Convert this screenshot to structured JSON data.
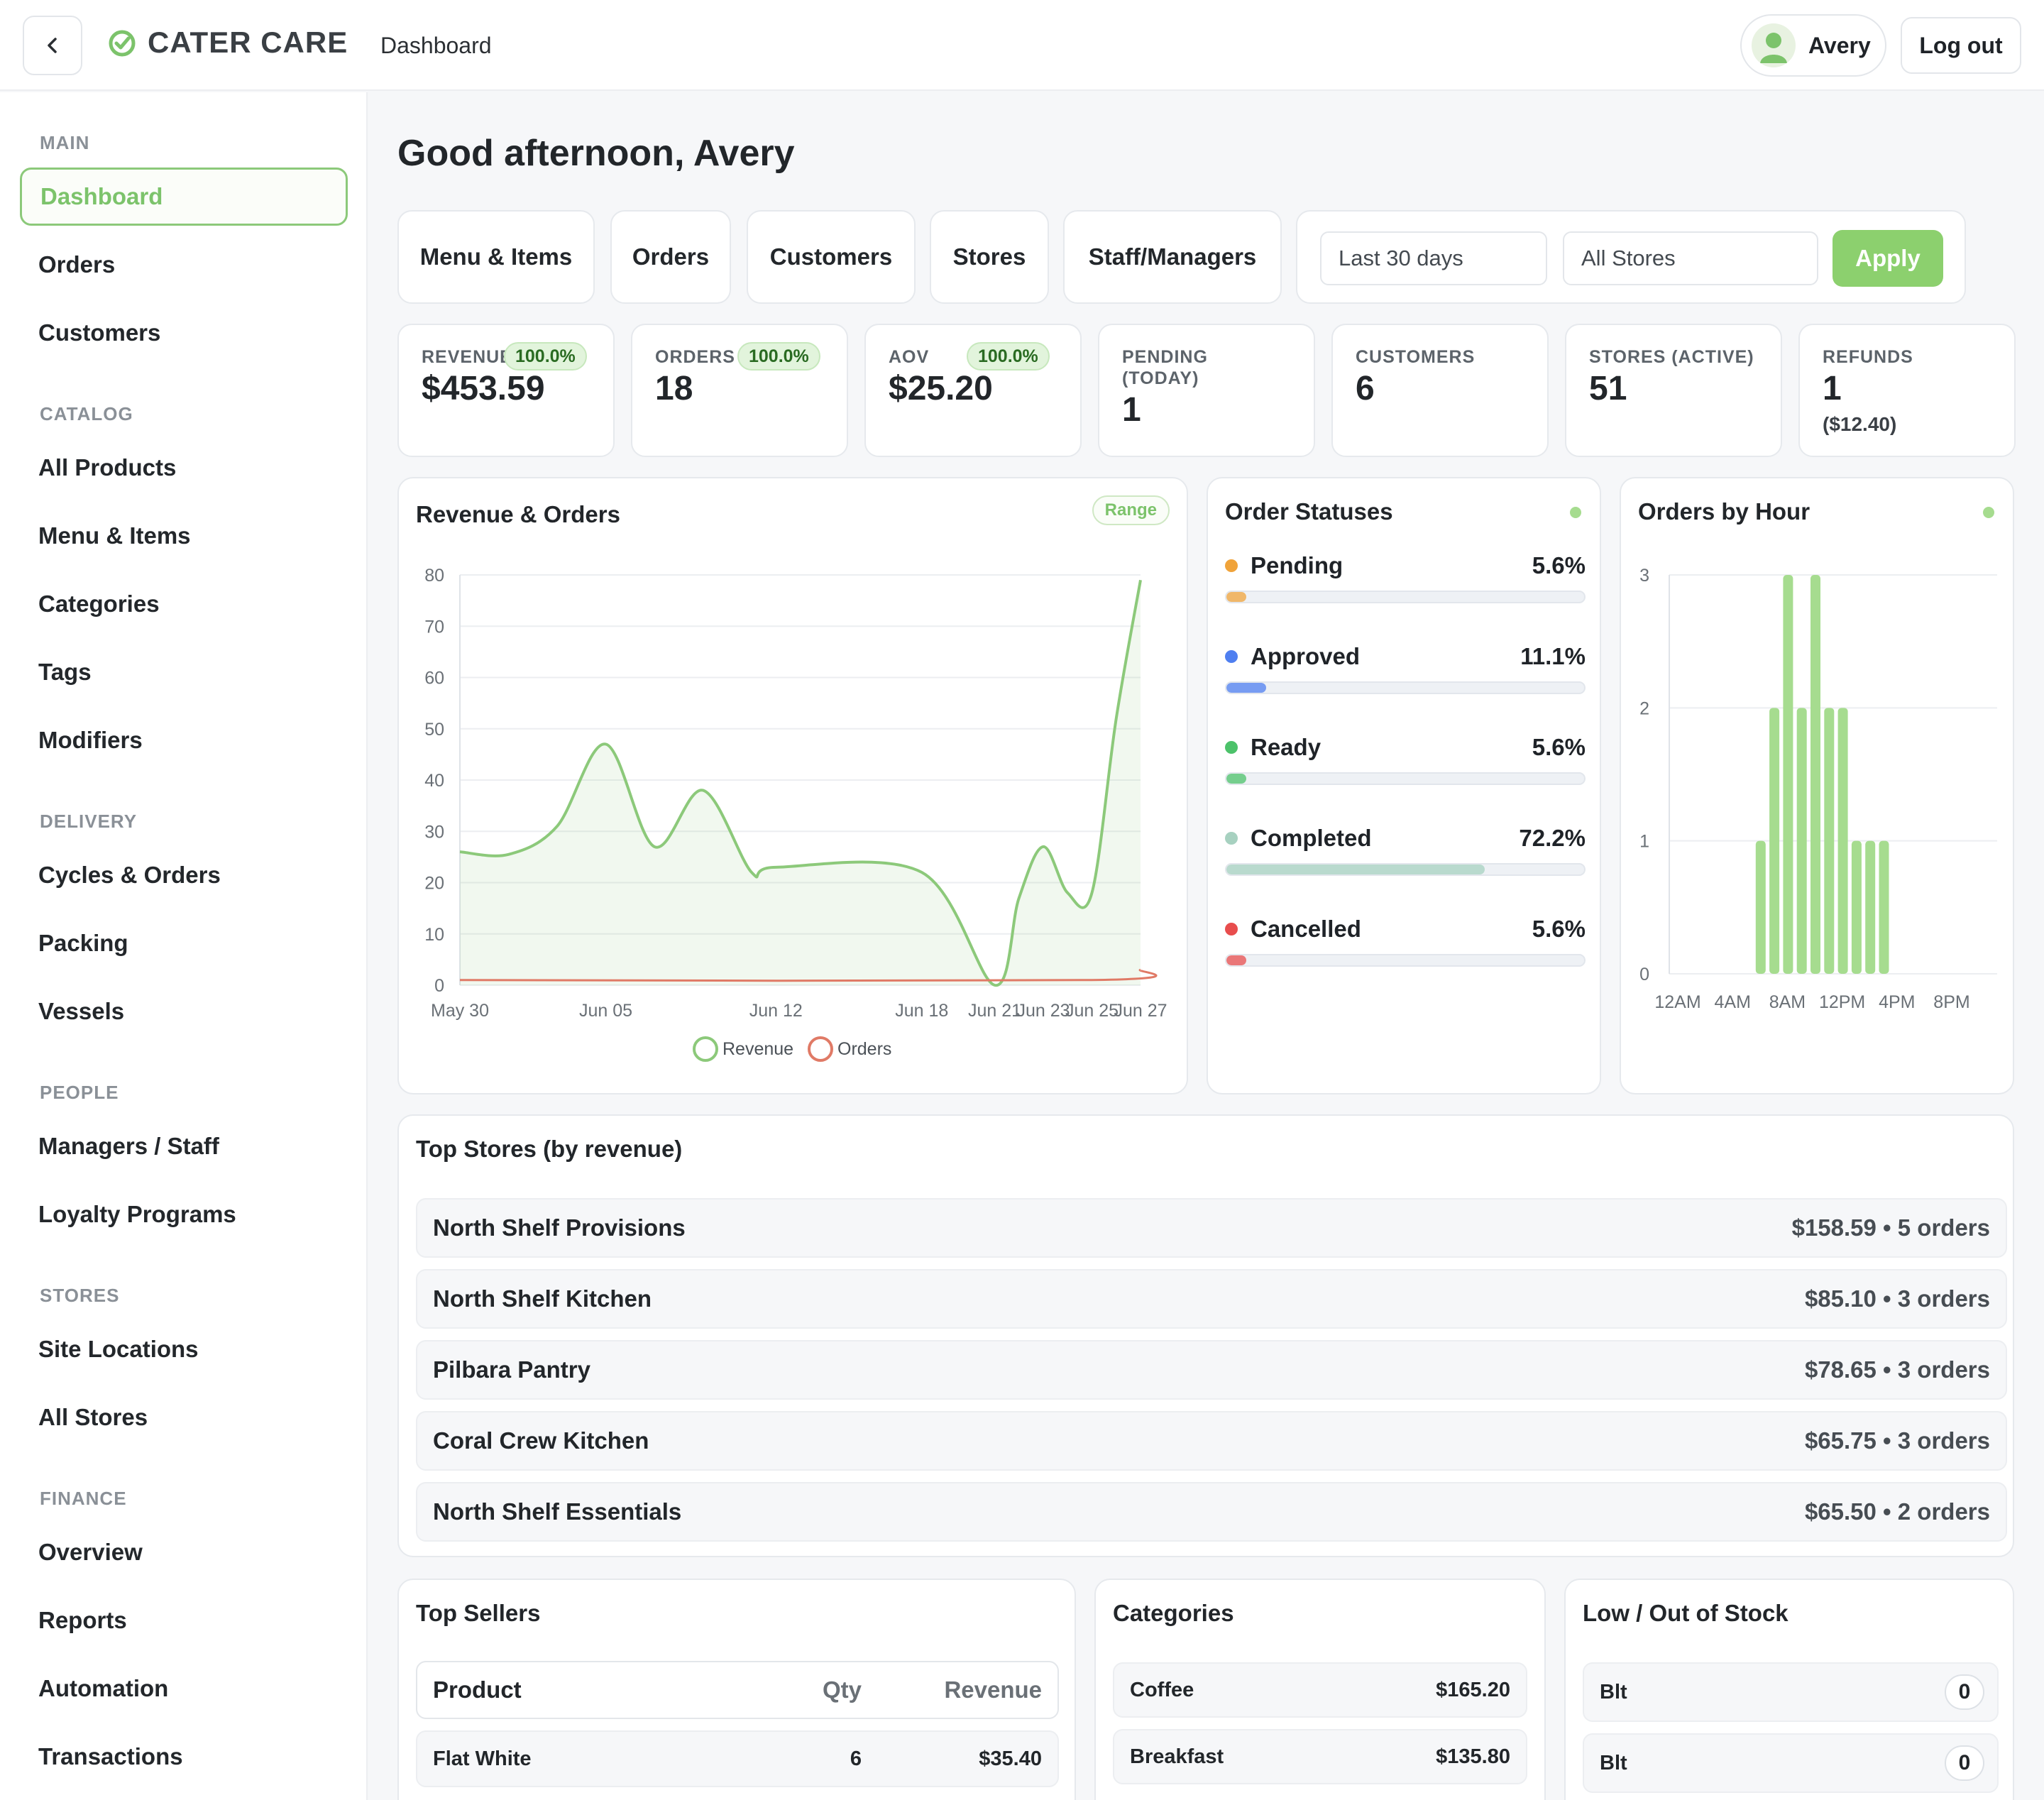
{
  "header": {
    "logo_text": "CATER CARE",
    "breadcrumb": "Dashboard",
    "user_name": "Avery",
    "logout_label": "Log out"
  },
  "sidebar": {
    "sections": [
      {
        "title": "MAIN",
        "items": [
          "Dashboard",
          "Orders",
          "Customers"
        ]
      },
      {
        "title": "CATALOG",
        "items": [
          "All Products",
          "Menu & Items",
          "Categories",
          "Tags",
          "Modifiers"
        ]
      },
      {
        "title": "DELIVERY",
        "items": [
          "Cycles & Orders",
          "Packing",
          "Vessels"
        ]
      },
      {
        "title": "PEOPLE",
        "items": [
          "Managers / Staff",
          "Loyalty Programs"
        ]
      },
      {
        "title": "STORES",
        "items": [
          "Site Locations",
          "All Stores"
        ]
      },
      {
        "title": "FINANCE",
        "items": [
          "Overview",
          "Reports",
          "Automation",
          "Transactions"
        ]
      }
    ]
  },
  "main": {
    "greeting": "Good afternoon, Avery",
    "quick_links": [
      "Menu & Items",
      "Orders",
      "Customers",
      "Stores",
      "Staff/Managers"
    ],
    "filters": {
      "period": "Last 30 days",
      "store": "All Stores",
      "apply_label": "Apply"
    },
    "kpis": [
      {
        "label": "REVENUE",
        "value": "$453.59",
        "badge": "100.0%"
      },
      {
        "label": "ORDERS",
        "value": "18",
        "badge": "100.0%"
      },
      {
        "label": "AOV",
        "value": "$25.20",
        "badge": "100.0%"
      },
      {
        "label": "PENDING (TODAY)",
        "value": "1"
      },
      {
        "label": "CUSTOMERS",
        "value": "6"
      },
      {
        "label": "STORES (ACTIVE)",
        "value": "51"
      },
      {
        "label": "REFUNDS",
        "value": "1",
        "sub": "($12.40)"
      }
    ],
    "revenue_card": {
      "title": "Revenue & Orders",
      "range_label": "Range"
    },
    "status_card": {
      "title": "Order Statuses",
      "statuses": [
        {
          "name": "Pending",
          "pct": "5.6%",
          "value": 5.6,
          "color": "#f0a33a"
        },
        {
          "name": "Approved",
          "pct": "11.1%",
          "value": 11.1,
          "color": "#4f7ff0"
        },
        {
          "name": "Ready",
          "pct": "5.6%",
          "value": 5.6,
          "color": "#4cc26a"
        },
        {
          "name": "Completed",
          "pct": "72.2%",
          "value": 72.2,
          "color": "#a7d1c0"
        },
        {
          "name": "Cancelled",
          "pct": "5.6%",
          "value": 5.6,
          "color": "#e84d4d"
        }
      ]
    },
    "hour_card": {
      "title": "Orders by Hour"
    },
    "top_stores": {
      "title": "Top Stores (by revenue)",
      "rows": [
        {
          "name": "North Shelf Provisions",
          "meta": "$158.59 • 5 orders"
        },
        {
          "name": "North Shelf Kitchen",
          "meta": "$85.10 • 3 orders"
        },
        {
          "name": "Pilbara Pantry",
          "meta": "$78.65 • 3 orders"
        },
        {
          "name": "Coral Crew Kitchen",
          "meta": "$65.75 • 3 orders"
        },
        {
          "name": "North Shelf Essentials",
          "meta": "$65.50 • 2 orders"
        }
      ]
    },
    "top_sellers": {
      "title": "Top Sellers",
      "columns": [
        "Product",
        "Qty",
        "Revenue"
      ],
      "rows": [
        {
          "product": "Flat White",
          "qty": "6",
          "revenue": "$35.40"
        }
      ]
    },
    "categories": {
      "title": "Categories",
      "rows": [
        {
          "name": "Coffee",
          "value": "$165.20"
        },
        {
          "name": "Breakfast",
          "value": "$135.80"
        }
      ]
    },
    "low_stock": {
      "title": "Low / Out of Stock",
      "rows": [
        {
          "name": "Blt",
          "count": "0"
        },
        {
          "name": "Blt",
          "count": "0"
        }
      ]
    }
  },
  "chart_data": [
    {
      "type": "line",
      "title": "Revenue & Orders",
      "x": [
        "May 30",
        "Jun 05",
        "Jun 12",
        "Jun 18",
        "Jun 21",
        "Jun 23",
        "Jun 25",
        "Jun 27"
      ],
      "x_tick_labels": [
        "May 30",
        "Jun 05",
        "Jun 12",
        "Jun 18",
        "Jun 21",
        "Jun 23",
        "Jun 25",
        "Jun 27"
      ],
      "series": [
        {
          "name": "Revenue",
          "color": "#8cc97a",
          "points": [
            [
              "May 30",
              26
            ],
            [
              "Jun 01",
              25.5
            ],
            [
              "Jun 03",
              31
            ],
            [
              "Jun 05",
              47
            ],
            [
              "Jun 07",
              27
            ],
            [
              "Jun 09",
              38
            ],
            [
              "Jun 11",
              22
            ],
            [
              "Jun 12",
              23
            ],
            [
              "Jun 18",
              22
            ],
            [
              "Jun 21",
              0
            ],
            [
              "Jun 22",
              17
            ],
            [
              "Jun 23",
              27
            ],
            [
              "Jun 24",
              18
            ],
            [
              "Jun 25",
              18
            ],
            [
              "Jun 26",
              52
            ],
            [
              "Jun 27",
              79
            ]
          ]
        },
        {
          "name": "Orders",
          "color": "#e07a66",
          "points": [
            [
              "May 30",
              1
            ],
            [
              "Jun 25",
              1
            ],
            [
              "Jun 27",
              3
            ]
          ]
        }
      ],
      "y_ticks": [
        0,
        10,
        20,
        30,
        40,
        50,
        60,
        70,
        80
      ],
      "ylim": [
        0,
        80
      ],
      "grid": true,
      "legend": "bottom-center"
    },
    {
      "type": "bar",
      "title": "Orders by Hour",
      "x_tick_labels": [
        "12AM",
        "4AM",
        "8AM",
        "12PM",
        "4PM",
        "8PM"
      ],
      "categories": [
        "6AM",
        "7AM",
        "8AM",
        "9AM",
        "10AM",
        "11AM",
        "12PM",
        "1PM",
        "2PM",
        "3PM"
      ],
      "values": [
        1,
        2,
        3,
        2,
        3,
        2,
        2,
        1,
        1,
        1
      ],
      "y_ticks": [
        0,
        1,
        2,
        3
      ],
      "ylim": [
        0,
        3
      ],
      "grid": true,
      "color": "#a6dc8f"
    }
  ]
}
